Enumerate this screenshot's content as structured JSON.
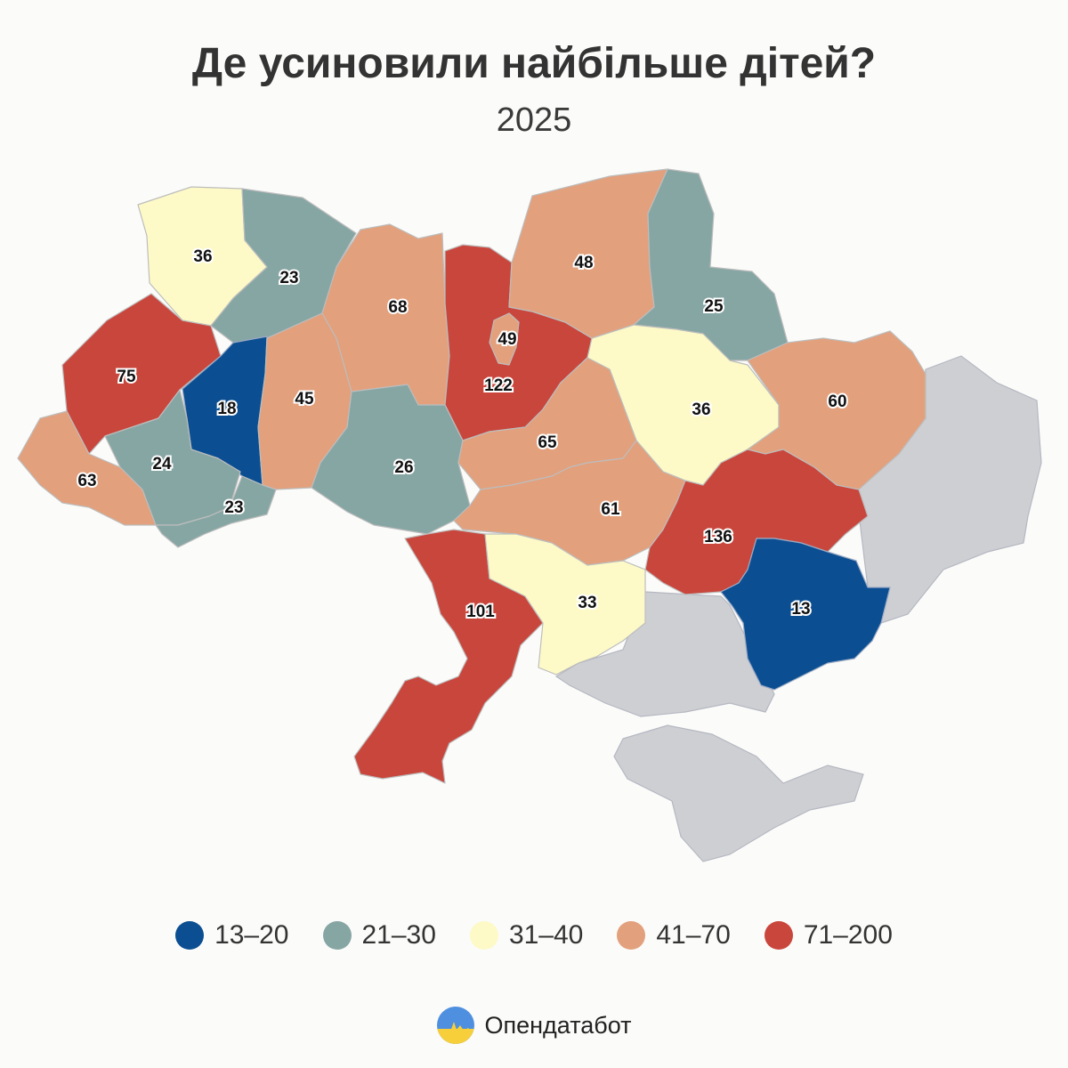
{
  "title": "Де усиновили найбільше дітей?",
  "subtitle": "2025",
  "legend": [
    {
      "label": "13–20",
      "color": "#0b4f92"
    },
    {
      "label": "21–30",
      "color": "#86a6a4"
    },
    {
      "label": "31–40",
      "color": "#fdfac7"
    },
    {
      "label": "41–70",
      "color": "#e3a07c"
    },
    {
      "label": "71–200",
      "color": "#c9463c"
    }
  ],
  "brand": {
    "name": "Опендатабот"
  },
  "regions": [
    {
      "id": "volyn",
      "value": "36",
      "color": "#fdfac7"
    },
    {
      "id": "rivne",
      "value": "23",
      "color": "#86a6a4"
    },
    {
      "id": "lviv",
      "value": "75",
      "color": "#c9463c"
    },
    {
      "id": "ternopil",
      "value": "18",
      "color": "#0b4f92"
    },
    {
      "id": "khmelnytskyi",
      "value": "45",
      "color": "#e3a07c"
    },
    {
      "id": "zhytomyr",
      "value": "68",
      "color": "#e3a07c"
    },
    {
      "id": "kyiv-oblast",
      "value": "122",
      "color": "#c9463c"
    },
    {
      "id": "kyiv-city",
      "value": "49",
      "color": "#e3a07c"
    },
    {
      "id": "chernihiv",
      "value": "48",
      "color": "#e3a07c"
    },
    {
      "id": "sumy",
      "value": "25",
      "color": "#86a6a4"
    },
    {
      "id": "poltava",
      "value": "36",
      "color": "#fdfac7"
    },
    {
      "id": "kharkiv",
      "value": "60",
      "color": "#e3a07c"
    },
    {
      "id": "zakarpattia",
      "value": "63",
      "color": "#e3a07c"
    },
    {
      "id": "ivano-frankivsk",
      "value": "24",
      "color": "#86a6a4"
    },
    {
      "id": "chernivtsi",
      "value": "23",
      "color": "#86a6a4"
    },
    {
      "id": "vinnytsia",
      "value": "26",
      "color": "#86a6a4"
    },
    {
      "id": "cherkasy",
      "value": "65",
      "color": "#e3a07c"
    },
    {
      "id": "kirovohrad",
      "value": "61",
      "color": "#e3a07c"
    },
    {
      "id": "dnipropetrovsk",
      "value": "136",
      "color": "#c9463c"
    },
    {
      "id": "odesa",
      "value": "101",
      "color": "#c9463c"
    },
    {
      "id": "mykolaiv",
      "value": "33",
      "color": "#fdfac7"
    },
    {
      "id": "zaporizhzhia",
      "value": "13",
      "color": "#0b4f92"
    }
  ]
}
